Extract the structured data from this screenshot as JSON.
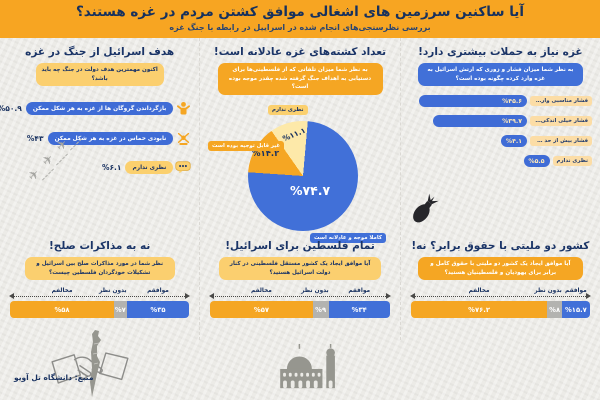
{
  "header": {
    "title": "آیا ساکنین سرزمین های اشغالی موافق کشتن مردم در غزه هستند؟",
    "subtitle": "بررسی نظرسنجی‌های انجام شده در اسراییل در رابطه با جنگ غزه"
  },
  "colors": {
    "header_orange": "#f7a522",
    "navy": "#1a3467",
    "bar_blue": "#3f6cd6",
    "accent_blue": "#4170d8",
    "orange": "#f5a623",
    "gray": "#b3b3b0",
    "badge_yellow": "#fbd06e",
    "pie_light_yellow": "#fde9a9",
    "paper": "#ecebe7"
  },
  "sections": {
    "attacks": {
      "title": "غزه نیاز به حملات بیشتری دارد!",
      "question": "به نظر شما میزان فشار و زوری که ارتش اسرائیل به غزه وارد کرده چگونه بوده است؟",
      "bars": [
        {
          "label": "فشار مناسبی وارد کرده است",
          "value": "%۴۵.۶",
          "pct": 45.6
        },
        {
          "label": "فشار خیلی اندکی وارد کرده است",
          "value": "%۳۹.۷",
          "pct": 39.7
        },
        {
          "label": "فشار بیش از حد وارد کرده است",
          "value": "%۴.۱",
          "pct": 4.1
        },
        {
          "label": "نظری ندارم",
          "value": "%۵.۵",
          "pct": 5.5
        }
      ]
    },
    "casualties": {
      "title": "تعداد کشته‌های غزه عادلانه است!",
      "question": "به نظر شما میزان تلفاتی که از فلسطینی‌ها برای دستیابی به اهداف جنگ گرفته شده چقدر موجه بوده است؟",
      "slices": [
        {
          "label": "کاملا موجه و عادلانه است",
          "value": "%۷۴.۷",
          "pct": 74.7,
          "color": "#4170d8"
        },
        {
          "label": "غیر قابل توجیه بوده است",
          "value": "%۱۴.۲",
          "pct": 14.2,
          "color": "#f5a623"
        },
        {
          "label": "نظری ندارم",
          "value": "%۱۱.۱",
          "pct": 11.1,
          "color": "#fde9a9"
        }
      ]
    },
    "goal": {
      "title": "هدف اسرائیل از جنگ در غزه",
      "question": "اکنون مهمترین هدف دولت در جنگ چه باید باشد؟",
      "rows": [
        {
          "label": "بازگرداندن گروگان ها از غزه به هر شکل ممکن",
          "value": "%۵۰.۹",
          "icon": "hostage-icon"
        },
        {
          "label": "نابودی حماس در غزه به هر شکل ممکن",
          "value": "%۴۳",
          "icon": "hamas-emblem-icon"
        },
        {
          "label": "نظری ندارم",
          "value": "%۶.۱",
          "icon": "speech-bubble-icon"
        }
      ]
    },
    "binational": {
      "title": "کشور دو ملیتی با حقوق برابر؟ نه!",
      "question": "آیا موافق ایجاد یک کشور دو ملیتی با حقوق کامل و برابر برای یهودیان و فلسطینیان هستید؟",
      "segments": [
        {
          "label": "موافقم",
          "value": "%۱۵.۷",
          "pct": 15.7,
          "color": "blue"
        },
        {
          "label": "بدون نظر",
          "value": "%۸",
          "pct": 8,
          "color": "gray"
        },
        {
          "label": "مخالفم",
          "value": "%۷۶.۲",
          "pct": 76.2,
          "color": "orange"
        }
      ]
    },
    "palestine": {
      "title": "تمام فلسطین برای اسرائیل!",
      "question": "آیا موافق ایجاد یک کشور مستقل فلسطینی در کنار دولت اسرائیل هستید؟",
      "segments": [
        {
          "label": "موافقم",
          "value": "%۳۴",
          "pct": 34,
          "color": "blue"
        },
        {
          "label": "بدون نظر",
          "value": "%۹",
          "pct": 9,
          "color": "gray"
        },
        {
          "label": "مخالفم",
          "value": "%۵۷",
          "pct": 57,
          "color": "orange"
        }
      ]
    },
    "negotiations": {
      "title": "نه به مذاکرات صلح!",
      "question": "نظر شما در مورد مذاکرات صلح بین اسرائیل و تشکیلات خودگردان فلسطین چیست؟",
      "segments": [
        {
          "label": "موافقم",
          "value": "%۳۵",
          "pct": 35,
          "color": "blue"
        },
        {
          "label": "بدون نظر",
          "value": "%۷",
          "pct": 7,
          "color": "gray"
        },
        {
          "label": "مخالفم",
          "value": "%۵۸",
          "pct": 58,
          "color": "orange"
        }
      ]
    }
  },
  "source": {
    "label": "منبع: دانشگاه تل آویو"
  },
  "chart_data": [
    {
      "type": "bar",
      "title": "غزه نیاز به حملات بیشتری دارد!",
      "categories": [
        "فشار مناسبی وارد کرده است",
        "فشار خیلی اندکی وارد کرده است",
        "فشار بیش از حد وارد کرده است",
        "نظری ندارم"
      ],
      "values": [
        45.6,
        39.7,
        4.1,
        5.5
      ],
      "unit": "%",
      "orientation": "horizontal"
    },
    {
      "type": "pie",
      "title": "تعداد کشته‌های غزه عادلانه است!",
      "categories": [
        "کاملا موجه و عادلانه است",
        "غیر قابل توجیه بوده است",
        "نظری ندارم"
      ],
      "values": [
        74.7,
        14.2,
        11.1
      ],
      "unit": "%"
    },
    {
      "type": "bar",
      "title": "هدف اسرائیل از جنگ در غزه",
      "categories": [
        "بازگرداندن گروگان ها از غزه به هر شکل ممکن",
        "نابودی حماس در غزه به هر شکل ممکن",
        "نظری ندارم"
      ],
      "values": [
        50.9,
        43,
        6.1
      ],
      "unit": "%",
      "orientation": "horizontal"
    },
    {
      "type": "bar",
      "subtype": "stacked",
      "title": "کشور دو ملیتی با حقوق برابر؟ نه!",
      "categories": [
        "موافقم",
        "بدون نظر",
        "مخالفم"
      ],
      "values": [
        15.7,
        8,
        76.2
      ],
      "unit": "%"
    },
    {
      "type": "bar",
      "subtype": "stacked",
      "title": "تمام فلسطین برای اسرائیل!",
      "categories": [
        "موافقم",
        "بدون نظر",
        "مخالفم"
      ],
      "values": [
        34,
        9,
        57
      ],
      "unit": "%"
    },
    {
      "type": "bar",
      "subtype": "stacked",
      "title": "نه به مذاکرات صلح!",
      "categories": [
        "موافقم",
        "بدون نظر",
        "مخالفم"
      ],
      "values": [
        35,
        7,
        58
      ],
      "unit": "%"
    }
  ]
}
